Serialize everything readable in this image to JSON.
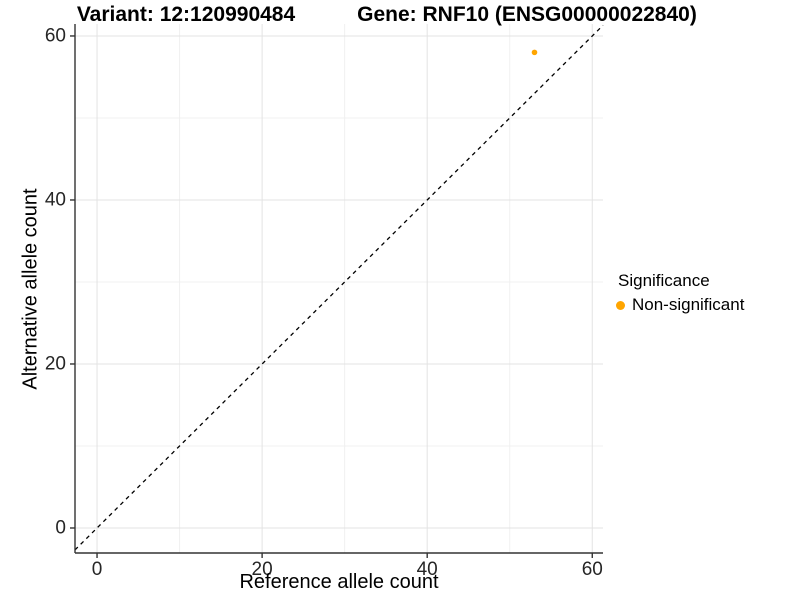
{
  "chart_data": {
    "type": "scatter",
    "title_left": "Variant: 12:120990484",
    "title_right": "Gene: RNF10 (ENSG00000022840)",
    "xlabel": "Reference allele count",
    "ylabel": "Alternative allele count",
    "xlim": [
      -2.67,
      61.3
    ],
    "ylim": [
      -3.05,
      61.46
    ],
    "x_ticks": [
      0,
      20,
      40,
      60
    ],
    "y_ticks": [
      0,
      20,
      40,
      60
    ],
    "x_minor_ticks": [
      10,
      30,
      50
    ],
    "y_minor_ticks": [
      10,
      30,
      50
    ],
    "grid": true,
    "points": [
      {
        "x": 53,
        "y": 58,
        "series": "Non-significant"
      }
    ],
    "reference_line": {
      "kind": "y-equals-x",
      "style": "dashed",
      "color": "#000000"
    },
    "legend": {
      "title": "Significance",
      "position": "right",
      "items": [
        {
          "label": "Non-significant",
          "color": "#FFA500"
        }
      ]
    },
    "colors": {
      "point": "#FFA500",
      "grid_major": "#e3e3e3",
      "grid_minor": "#f0f0f0",
      "axis_line": "#333333",
      "tick_text": "#262626",
      "background": "#ffffff"
    }
  }
}
